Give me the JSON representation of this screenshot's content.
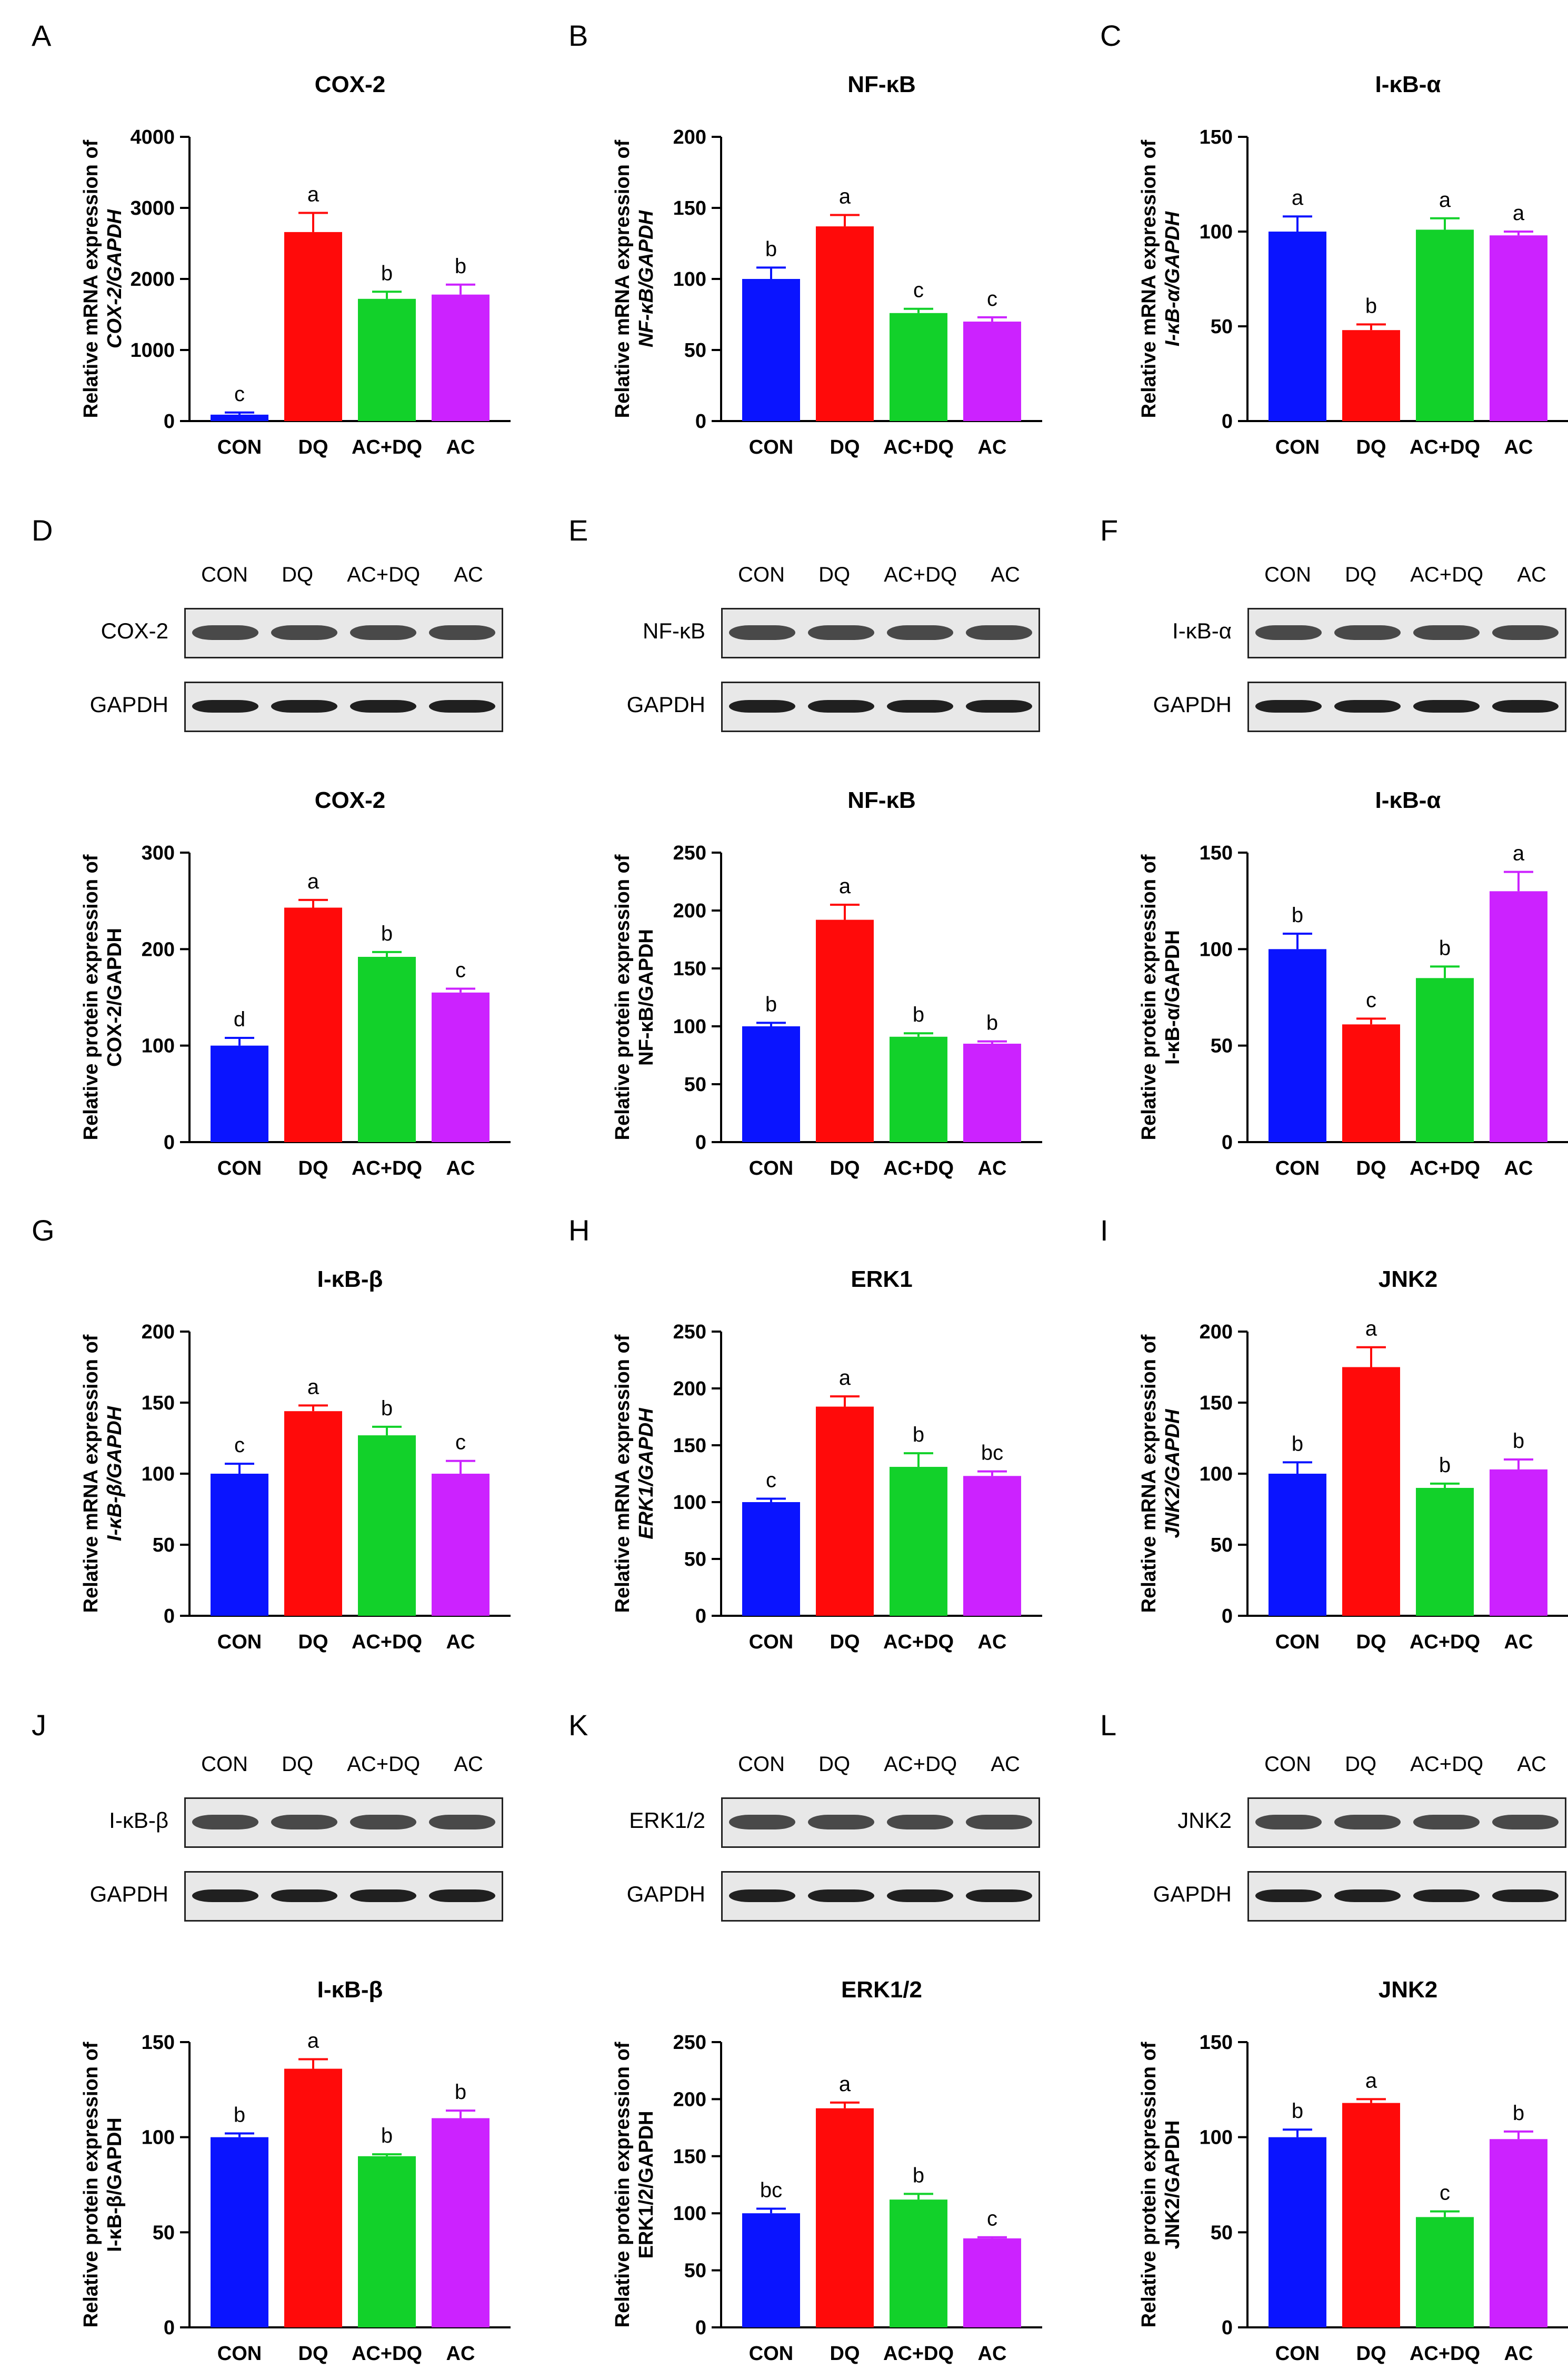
{
  "colors": {
    "CON": "#0a14ff",
    "DQ": "#ff0a0a",
    "AC+DQ": "#12d12a",
    "AC": "#cc22ff"
  },
  "categories": [
    "CON",
    "DQ",
    "AC+DQ",
    "AC"
  ],
  "chart_data": [
    {
      "panel": "A",
      "type": "bar",
      "title": "COX-2",
      "ylabel1": "Relative mRNA expression of",
      "ylabel2": "COX-2/GAPDH",
      "ylabel2_italic": true,
      "ylim": [
        0,
        4000
      ],
      "ticks": [
        0,
        1000,
        2000,
        3000,
        4000
      ],
      "values": [
        90,
        2660,
        1720,
        1780
      ],
      "errors": [
        30,
        270,
        100,
        140
      ],
      "letters": [
        "c",
        "a",
        "b",
        "b"
      ]
    },
    {
      "panel": "B",
      "type": "bar",
      "title": "NF-κB",
      "ylabel1": "Relative mRNA expression of",
      "ylabel2": "NF-κB/GAPDH",
      "ylabel2_italic": true,
      "ylim": [
        0,
        200
      ],
      "ticks": [
        0,
        50,
        100,
        150,
        200
      ],
      "values": [
        100,
        137,
        76,
        70
      ],
      "errors": [
        8,
        8,
        3,
        3
      ],
      "letters": [
        "b",
        "a",
        "c",
        "c"
      ]
    },
    {
      "panel": "C",
      "type": "bar",
      "title": "I-κB-α",
      "ylabel1": "Relative mRNA expression of",
      "ylabel2": "I-κB-α/GAPDH",
      "ylabel2_italic": true,
      "ylim": [
        0,
        150
      ],
      "ticks": [
        0,
        50,
        100,
        150
      ],
      "values": [
        100,
        48,
        101,
        98
      ],
      "errors": [
        8,
        3,
        6,
        2
      ],
      "letters": [
        "a",
        "b",
        "a",
        "a"
      ]
    },
    {
      "panel": "D",
      "type": "bar",
      "title": "COX-2",
      "ylabel1": "Relative protein expression of",
      "ylabel2": "COX-2/GAPDH",
      "ylabel2_italic": false,
      "ylim": [
        0,
        300
      ],
      "ticks": [
        0,
        100,
        200,
        300
      ],
      "values": [
        100,
        243,
        192,
        155
      ],
      "errors": [
        8,
        8,
        5,
        4
      ],
      "letters": [
        "d",
        "a",
        "b",
        "c"
      ]
    },
    {
      "panel": "E",
      "type": "bar",
      "title": "NF-κB",
      "ylabel1": "Relative protein expression of",
      "ylabel2": "NF-κB/GAPDH",
      "ylabel2_italic": false,
      "ylim": [
        0,
        250
      ],
      "ticks": [
        0,
        50,
        100,
        150,
        200,
        250
      ],
      "values": [
        100,
        192,
        91,
        85
      ],
      "errors": [
        3,
        13,
        3,
        2
      ],
      "letters": [
        "b",
        "a",
        "b",
        "b"
      ]
    },
    {
      "panel": "F",
      "type": "bar",
      "title": "I-κB-α",
      "ylabel1": "Relative protein expression of",
      "ylabel2": "I-κB-α/GAPDH",
      "ylabel2_italic": false,
      "ylim": [
        0,
        150
      ],
      "ticks": [
        0,
        50,
        100,
        150
      ],
      "values": [
        100,
        61,
        85,
        130
      ],
      "errors": [
        8,
        3,
        6,
        10
      ],
      "letters": [
        "b",
        "c",
        "b",
        "a"
      ]
    },
    {
      "panel": "G",
      "type": "bar",
      "title": "I-κB-β",
      "ylabel1": "Relative mRNA expression of",
      "ylabel2": "I-κB-β/GAPDH",
      "ylabel2_italic": true,
      "ylim": [
        0,
        200
      ],
      "ticks": [
        0,
        50,
        100,
        150,
        200
      ],
      "values": [
        100,
        144,
        127,
        100
      ],
      "errors": [
        7,
        4,
        6,
        9
      ],
      "letters": [
        "c",
        "a",
        "b",
        "c"
      ]
    },
    {
      "panel": "H",
      "type": "bar",
      "title": "ERK1",
      "ylabel1": "Relative mRNA expression of",
      "ylabel2": "ERK1/GAPDH",
      "ylabel2_italic": true,
      "ylim": [
        0,
        250
      ],
      "ticks": [
        0,
        50,
        100,
        150,
        200,
        250
      ],
      "values": [
        100,
        184,
        131,
        123
      ],
      "errors": [
        3,
        9,
        12,
        4
      ],
      "letters": [
        "c",
        "a",
        "b",
        "bc"
      ]
    },
    {
      "panel": "I",
      "type": "bar",
      "title": "JNK2",
      "ylabel1": "Relative mRNA expression of",
      "ylabel2": "JNK2/GAPDH",
      "ylabel2_italic": true,
      "ylim": [
        0,
        200
      ],
      "ticks": [
        0,
        50,
        100,
        150,
        200
      ],
      "values": [
        100,
        175,
        90,
        103
      ],
      "errors": [
        8,
        14,
        3,
        7
      ],
      "letters": [
        "b",
        "a",
        "b",
        "b"
      ]
    },
    {
      "panel": "J",
      "type": "bar",
      "title": "I-κB-β",
      "ylabel1": "Relative protein expression of",
      "ylabel2": "I-κB-β/GAPDH",
      "ylabel2_italic": false,
      "ylim": [
        0,
        150
      ],
      "ticks": [
        0,
        50,
        100,
        150
      ],
      "values": [
        100,
        136,
        90,
        110
      ],
      "errors": [
        2,
        5,
        1,
        4
      ],
      "letters": [
        "b",
        "a",
        "b",
        "b"
      ]
    },
    {
      "panel": "K",
      "type": "bar",
      "title": "ERK1/2",
      "ylabel1": "Relative protein expression of",
      "ylabel2": "ERK1/2/GAPDH",
      "ylabel2_italic": false,
      "ylim": [
        0,
        250
      ],
      "ticks": [
        0,
        50,
        100,
        150,
        200,
        250
      ],
      "values": [
        100,
        192,
        112,
        78
      ],
      "errors": [
        4,
        5,
        5,
        1
      ],
      "letters": [
        "bc",
        "a",
        "b",
        "c"
      ]
    },
    {
      "panel": "L",
      "type": "bar",
      "title": "JNK2",
      "ylabel1": "Relative protein expression of",
      "ylabel2": "JNK2/GAPDH",
      "ylabel2_italic": false,
      "ylim": [
        0,
        150
      ],
      "ticks": [
        0,
        50,
        100,
        150
      ],
      "values": [
        100,
        118,
        58,
        99
      ],
      "errors": [
        4,
        2,
        3,
        4
      ],
      "letters": [
        "b",
        "a",
        "c",
        "b"
      ]
    }
  ],
  "blots": [
    {
      "panel": "D",
      "protein": "COX-2",
      "lanes": [
        "CON",
        "DQ",
        "AC+DQ",
        "AC"
      ]
    },
    {
      "panel": "E",
      "protein": "NF-κB",
      "lanes": [
        "CON",
        "DQ",
        "AC+DQ",
        "AC"
      ]
    },
    {
      "panel": "F",
      "protein": "I-κB-α",
      "lanes": [
        "CON",
        "DQ",
        "AC+DQ",
        "AC"
      ]
    },
    {
      "panel": "J",
      "protein": "I-κB-β",
      "lanes": [
        "CON",
        "DQ",
        "AC+DQ",
        "AC"
      ]
    },
    {
      "panel": "K",
      "protein": "ERK1/2",
      "lanes": [
        "CON",
        "DQ",
        "AC+DQ",
        "AC"
      ]
    },
    {
      "panel": "L",
      "protein": "JNK2",
      "lanes": [
        "CON",
        "DQ",
        "AC+DQ",
        "AC"
      ]
    }
  ],
  "loading_control": "GAPDH",
  "panel_letters": [
    "A",
    "B",
    "C",
    "D",
    "E",
    "F",
    "G",
    "H",
    "I",
    "J",
    "K",
    "L"
  ]
}
